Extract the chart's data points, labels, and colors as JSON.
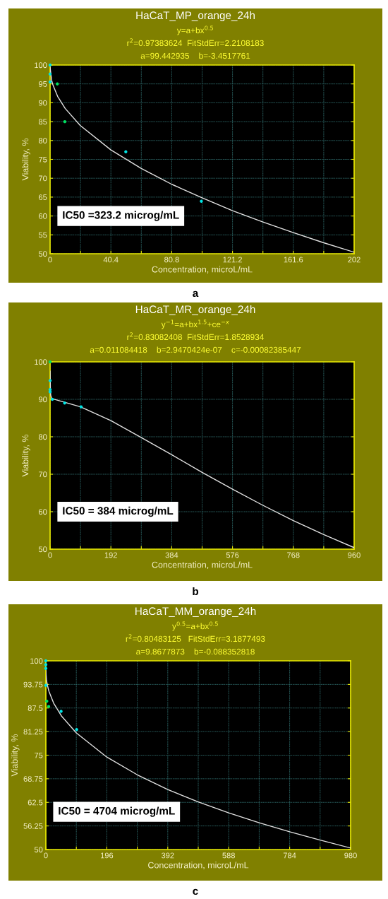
{
  "chart_data": [
    {
      "type": "scatter",
      "title": "HaCaT_MP_orange_24h",
      "subtitle": "y=a+bx$^{0.5}$",
      "xlabel": "Concentration, microL/mL",
      "ylabel": "Viability, %",
      "annotations": [
        "r$^{2}$=0.97383624  FitStdErr=2.2108183",
        "a=99.442935    b=-3.4517761",
        "IC50 =323.2 microg/mL",
        "a"
      ],
      "xlim": [
        0,
        202
      ],
      "ylim": [
        50,
        100
      ],
      "xticks": [
        0,
        {
          "value": 20.2,
          "label": null
        },
        40.4,
        {
          "value": 60.6,
          "label": null
        },
        80.8,
        {
          "value": 101,
          "label": null
        },
        121.2,
        {
          "value": 141.4,
          "label": null
        },
        161.6,
        {
          "value": 181.8,
          "label": null
        },
        202
      ],
      "yticks": [
        50,
        55,
        60,
        65,
        70,
        75,
        80,
        85,
        90,
        95,
        100
      ],
      "grid": true,
      "series": [
        {
          "marker": "circle",
          "x": [
            0,
            0,
            0,
            4.8,
            9.8,
            50.3,
            100.5
          ],
          "values": [
            100,
            97.6,
            95.5,
            95,
            85,
            77,
            63.9
          ],
          "colors": [
            "#00e5e5",
            "#00e5e5",
            "#00e5e5",
            "#00e060",
            "#00e060",
            "#00e5e5",
            "#00e5e5"
          ]
        },
        {
          "type": "line",
          "marker": "none",
          "color": "#e0e0e0",
          "x": [
            0,
            1,
            2,
            5,
            10,
            20,
            40.4,
            60.6,
            80.8,
            101,
            121.2,
            141.4,
            161.6,
            181.8,
            202
          ],
          "values": [
            99.4,
            96.0,
            94.6,
            91.7,
            88.5,
            84.0,
            77.5,
            72.6,
            68.4,
            64.8,
            61.4,
            58.4,
            55.6,
            52.9,
            50.4
          ]
        }
      ]
    },
    {
      "type": "scatter",
      "title": "HaCaT_MR_orange_24h",
      "subtitle": "y$^{−1}$=a+bx$^{1.5}$+ce$^{−x}$",
      "xlabel": "Concentration, microL/mL",
      "ylabel": "Viability, %",
      "annotations": [
        "r$^{2}$=0.83082408  FitStdErr=1.8528934",
        "a=0.011084418    b=2.9470424e-07    c=-0.00082385447",
        "IC50 = 384 microg/mL",
        "b"
      ],
      "xlim": [
        0,
        960
      ],
      "ylim": [
        50,
        100
      ],
      "xticks": [
        0,
        {
          "value": 96,
          "label": null
        },
        192,
        {
          "value": 288,
          "label": null
        },
        384,
        {
          "value": 480,
          "label": null
        },
        576,
        {
          "value": 672,
          "label": null
        },
        768,
        {
          "value": 864,
          "label": null
        },
        960
      ],
      "yticks": [
        50,
        60,
        70,
        80,
        90,
        100
      ],
      "grid": true,
      "series": [
        {
          "marker": "circle",
          "x": [
            0,
            0,
            0,
            0,
            7,
            46,
            98
          ],
          "values": [
            100,
            95,
            92.6,
            92,
            90,
            89,
            88
          ],
          "colors": [
            "#00e060",
            "#00e5e5",
            "#00e5e5",
            "#00e5e5",
            "#00e5e5",
            "#00e5e5",
            "#00e5e5"
          ]
        },
        {
          "type": "line",
          "marker": "none",
          "color": "#e0e0e0",
          "x": [
            0,
            1,
            2,
            5,
            96,
            192,
            288,
            384,
            480,
            576,
            672,
            768,
            864,
            960
          ],
          "values": [
            97.5,
            92.8,
            91.1,
            90.2,
            88.0,
            84.3,
            79.8,
            75.2,
            70.5,
            66.0,
            61.7,
            57.6,
            53.9,
            50.4
          ]
        }
      ]
    },
    {
      "type": "scatter",
      "title": "HaCaT_MM_orange_24h",
      "subtitle": "y$^{0.5}$=a+bx$^{0.5}$",
      "xlabel": "Concentration, microL/mL",
      "ylabel": "Viability, %",
      "annotations": [
        "r$^{2}$=0.80483125   FitStdErr=3.1877493",
        "a=9.8677873    b=-0.088352818",
        "IC50 = 4704 microg/mL",
        "c"
      ],
      "xlim": [
        0,
        980
      ],
      "ylim": [
        50,
        100
      ],
      "xticks": [
        0,
        {
          "value": 98,
          "label": null
        },
        196,
        {
          "value": 294,
          "label": null
        },
        392,
        {
          "value": 490,
          "label": null
        },
        588,
        {
          "value": 686,
          "label": null
        },
        784,
        {
          "value": 882,
          "label": null
        },
        980
      ],
      "yticks": [
        50,
        56.25,
        62.5,
        68.75,
        75,
        81.25,
        87.5,
        93.75,
        100
      ],
      "grid": true,
      "series": [
        {
          "marker": "circle",
          "x": [
            0,
            0,
            0,
            0,
            3,
            9,
            49,
            99
          ],
          "values": [
            100,
            99,
            98,
            93.5,
            89.3,
            87.9,
            86.6,
            81.8
          ],
          "colors": [
            "#00e5e5",
            "#00e5e5",
            "#00e5e5",
            "#00e5e5",
            "#00e060",
            "#00e060",
            "#00e5e5",
            "#00e5e5"
          ]
        },
        {
          "type": "line",
          "marker": "none",
          "color": "#e0e0e0",
          "x": [
            0,
            2,
            5,
            10,
            25,
            50,
            98,
            196,
            294,
            392,
            490,
            588,
            686,
            784,
            882,
            980
          ],
          "values": [
            97.4,
            94.9,
            93.5,
            91.9,
            88.8,
            85.4,
            80.9,
            74.5,
            69.8,
            65.9,
            62.6,
            59.7,
            57.1,
            54.7,
            52.5,
            50.4
          ]
        }
      ]
    }
  ]
}
